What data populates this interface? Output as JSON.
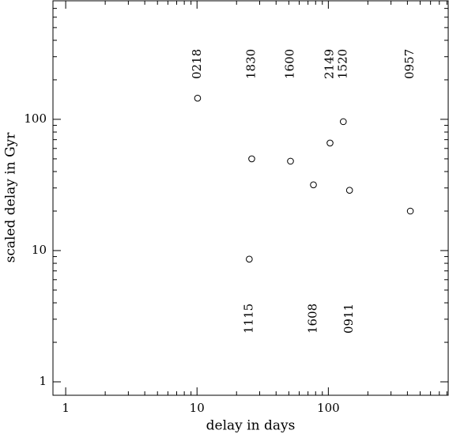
{
  "chart_data": {
    "type": "scatter",
    "xlabel": "delay in days",
    "ylabel": "scaled delay in Gyr",
    "xscale": "log",
    "yscale": "log",
    "x": [
      10.1,
      25,
      26.1,
      51.5,
      77,
      103,
      130,
      145,
      421
    ],
    "values": [
      145,
      8.6,
      50,
      48,
      31.7,
      66,
      96,
      28.8,
      20
    ],
    "point_labels": [
      "0218",
      "1115",
      "1830",
      "1600",
      "1608",
      "2149",
      "1520",
      "0911",
      "0957"
    ],
    "marker": "open-circle",
    "color": "#000000",
    "xlim": [
      0.8,
      818
    ],
    "ylim": [
      0.79,
      800
    ],
    "xticks": [
      1,
      10,
      100
    ],
    "yticks": [
      1,
      10,
      100
    ],
    "xminorticks": [
      2,
      3,
      4,
      5,
      6,
      7,
      8,
      9,
      20,
      30,
      40,
      50,
      60,
      70,
      80,
      90,
      200,
      300,
      400,
      500,
      600,
      700,
      800
    ],
    "yminorticks": [
      2,
      3,
      4,
      5,
      6,
      7,
      8,
      9,
      20,
      30,
      40,
      50,
      60,
      70,
      80,
      90,
      200,
      300,
      400,
      500,
      600,
      700,
      800
    ],
    "grid": false
  }
}
